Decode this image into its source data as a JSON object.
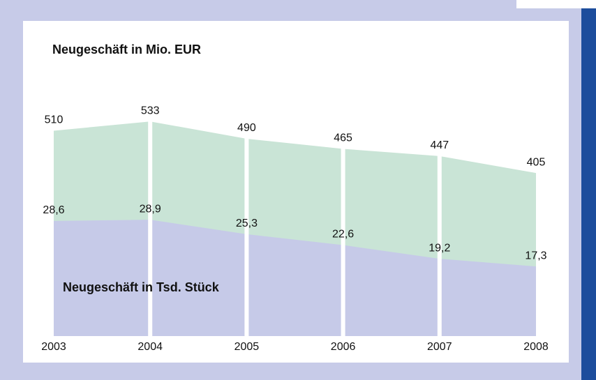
{
  "chart_data": {
    "type": "area",
    "categories": [
      "2003",
      "2004",
      "2005",
      "2006",
      "2007",
      "2008"
    ],
    "ylim": [
      0,
      800
    ],
    "y2lim": [
      0,
      80
    ],
    "series": [
      {
        "name": "Neugeschäft in Mio. EUR",
        "color": "#c9e4d6",
        "values": [
          510,
          533,
          490,
          465,
          447,
          405
        ]
      },
      {
        "name": "Neugeschäft in Tsd. Stück",
        "color": "#c6cae8",
        "axis": "y2",
        "values": [
          28.6,
          28.9,
          25.3,
          22.6,
          19.2,
          17.3
        ],
        "value_labels": [
          "28,6",
          "28,9",
          "25,3",
          "22,6",
          "19,2",
          "17,3"
        ]
      }
    ]
  }
}
